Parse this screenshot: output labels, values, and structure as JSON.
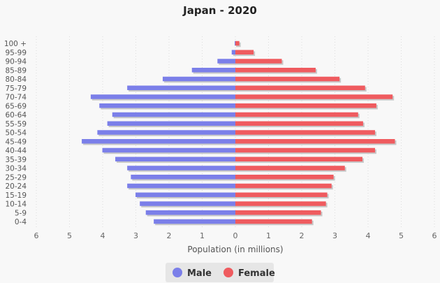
{
  "chart_data": {
    "type": "bar",
    "orientation": "horizontal",
    "title": "Japan - 2020",
    "xlabel": "Population (in millions)",
    "ylabel": "",
    "xlim": [
      -6,
      6
    ],
    "x_ticks": [
      6,
      5,
      4,
      3,
      2,
      1,
      0,
      1,
      2,
      3,
      4,
      5,
      6
    ],
    "categories": [
      "100 +",
      "95-99",
      "90-94",
      "85-89",
      "80-84",
      "75-79",
      "70-74",
      "65-69",
      "60-64",
      "55-59",
      "50-54",
      "45-49",
      "40-44",
      "35-39",
      "30-34",
      "25-29",
      "20-24",
      "15-19",
      "10-14",
      "5-9",
      "0-4"
    ],
    "series": [
      {
        "name": "Male",
        "color": "#7b7fe9",
        "side": "left",
        "values": [
          0.02,
          0.11,
          0.54,
          1.31,
          2.19,
          3.26,
          4.36,
          4.1,
          3.71,
          3.86,
          4.16,
          4.63,
          4.01,
          3.62,
          3.26,
          3.15,
          3.26,
          3.01,
          2.88,
          2.7,
          2.46
        ]
      },
      {
        "name": "Female",
        "color": "#ef5b5f",
        "side": "right",
        "values": [
          0.12,
          0.55,
          1.4,
          2.42,
          3.14,
          3.91,
          4.74,
          4.25,
          3.7,
          3.85,
          4.21,
          4.81,
          4.21,
          3.83,
          3.3,
          2.96,
          2.9,
          2.77,
          2.73,
          2.58,
          2.31
        ]
      }
    ],
    "legend_position": "bottom-center",
    "grid": true
  }
}
